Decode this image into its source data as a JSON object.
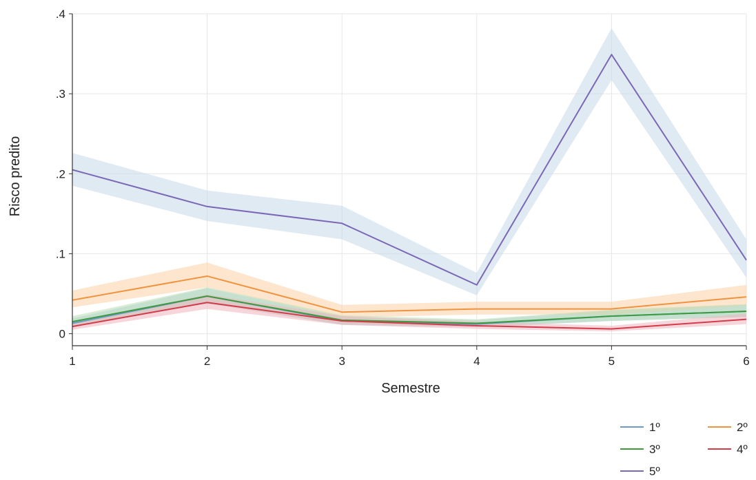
{
  "chart_data": {
    "type": "line",
    "title": "",
    "xlabel": "Semestre",
    "ylabel": "Risco predito",
    "x": [
      1,
      2,
      3,
      4,
      5,
      6
    ],
    "xticks": [
      "1",
      "2",
      "3",
      "4",
      "5",
      "6"
    ],
    "yticks": [
      {
        "value": 0,
        "label": "0"
      },
      {
        "value": 0.1,
        "label": ".1"
      },
      {
        "value": 0.2,
        "label": ".2"
      },
      {
        "value": 0.3,
        "label": ".3"
      },
      {
        "value": 0.4,
        "label": ".4"
      }
    ],
    "xlim": [
      1,
      6
    ],
    "ylim": [
      -0.015,
      0.4
    ],
    "grid": true,
    "legend_position": "bottom-right",
    "series": [
      {
        "name": "1º",
        "color": "#6a9bc3",
        "band_color": "#aecbe2",
        "values": [
          0.013,
          0.047,
          0.016,
          0.012,
          0.022,
          0.028
        ],
        "lower": [
          0.008,
          0.038,
          0.011,
          0.008,
          0.016,
          0.021
        ],
        "upper": [
          0.019,
          0.057,
          0.021,
          0.017,
          0.029,
          0.036
        ]
      },
      {
        "name": "2º",
        "color": "#f0933e",
        "band_color": "#fbcfa6",
        "values": [
          0.042,
          0.072,
          0.027,
          0.031,
          0.031,
          0.046
        ],
        "lower": [
          0.033,
          0.058,
          0.02,
          0.024,
          0.024,
          0.035
        ],
        "upper": [
          0.054,
          0.089,
          0.036,
          0.04,
          0.04,
          0.061
        ]
      },
      {
        "name": "3º",
        "color": "#3d9a3d",
        "band_color": "#b9dfb5",
        "values": [
          0.015,
          0.047,
          0.017,
          0.013,
          0.022,
          0.028
        ],
        "lower": [
          0.01,
          0.038,
          0.012,
          0.009,
          0.016,
          0.021
        ],
        "upper": [
          0.022,
          0.058,
          0.023,
          0.018,
          0.03,
          0.037
        ]
      },
      {
        "name": "4º",
        "color": "#d33a4a",
        "band_color": "#efb4bc",
        "values": [
          0.009,
          0.039,
          0.016,
          0.01,
          0.006,
          0.018
        ],
        "lower": [
          0.005,
          0.031,
          0.011,
          0.006,
          0.003,
          0.012
        ],
        "upper": [
          0.014,
          0.049,
          0.022,
          0.015,
          0.01,
          0.025
        ]
      },
      {
        "name": "5º",
        "color": "#7a68b5",
        "band_color": "#c7d9ea",
        "values": [
          0.205,
          0.159,
          0.138,
          0.061,
          0.349,
          0.092
        ],
        "lower": [
          0.185,
          0.141,
          0.118,
          0.048,
          0.317,
          0.07
        ],
        "upper": [
          0.226,
          0.179,
          0.16,
          0.076,
          0.382,
          0.118
        ]
      }
    ]
  }
}
